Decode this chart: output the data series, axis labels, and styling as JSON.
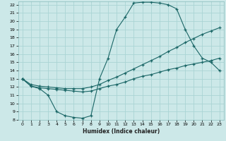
{
  "xlabel": "Humidex (Indice chaleur)",
  "bg_color": "#cce8e8",
  "grid_color": "#aad4d4",
  "line_color": "#1a6666",
  "xlim": [
    -0.5,
    23.5
  ],
  "ylim": [
    8,
    22.4
  ],
  "xticks": [
    0,
    1,
    2,
    3,
    4,
    5,
    6,
    7,
    8,
    9,
    10,
    11,
    12,
    13,
    14,
    15,
    16,
    17,
    18,
    19,
    20,
    21,
    22,
    23
  ],
  "yticks": [
    8,
    9,
    10,
    11,
    12,
    13,
    14,
    15,
    16,
    17,
    18,
    19,
    20,
    21,
    22
  ],
  "line1_x": [
    0,
    1,
    2,
    3,
    4,
    5,
    6,
    7,
    8,
    9,
    10,
    11,
    12,
    13,
    14,
    15,
    16,
    17,
    18,
    19,
    20,
    21,
    22,
    23
  ],
  "line1_y": [
    13.0,
    12.1,
    11.8,
    11.0,
    9.0,
    8.5,
    8.3,
    8.2,
    8.5,
    13.0,
    15.5,
    19.0,
    20.5,
    22.2,
    22.3,
    22.3,
    22.2,
    22.0,
    21.5,
    19.0,
    17.0,
    15.5,
    15.0,
    14.0
  ],
  "line2_x": [
    0,
    1,
    2,
    3,
    4,
    5,
    6,
    7,
    8,
    9,
    10,
    11,
    12,
    13,
    14,
    15,
    16,
    17,
    18,
    19,
    20,
    21,
    22,
    23
  ],
  "line2_y": [
    13.0,
    12.3,
    12.1,
    12.0,
    11.9,
    11.8,
    11.8,
    11.8,
    12.0,
    12.3,
    12.8,
    13.2,
    13.7,
    14.2,
    14.7,
    15.2,
    15.7,
    16.3,
    16.8,
    17.4,
    17.9,
    18.4,
    18.8,
    19.2
  ],
  "line3_x": [
    0,
    1,
    2,
    3,
    4,
    5,
    6,
    7,
    8,
    9,
    10,
    11,
    12,
    13,
    14,
    15,
    16,
    17,
    18,
    19,
    20,
    21,
    22,
    23
  ],
  "line3_y": [
    13.0,
    12.1,
    11.9,
    11.8,
    11.7,
    11.6,
    11.5,
    11.4,
    11.5,
    11.8,
    12.1,
    12.3,
    12.6,
    13.0,
    13.3,
    13.5,
    13.8,
    14.1,
    14.3,
    14.6,
    14.8,
    15.0,
    15.2,
    15.5
  ]
}
